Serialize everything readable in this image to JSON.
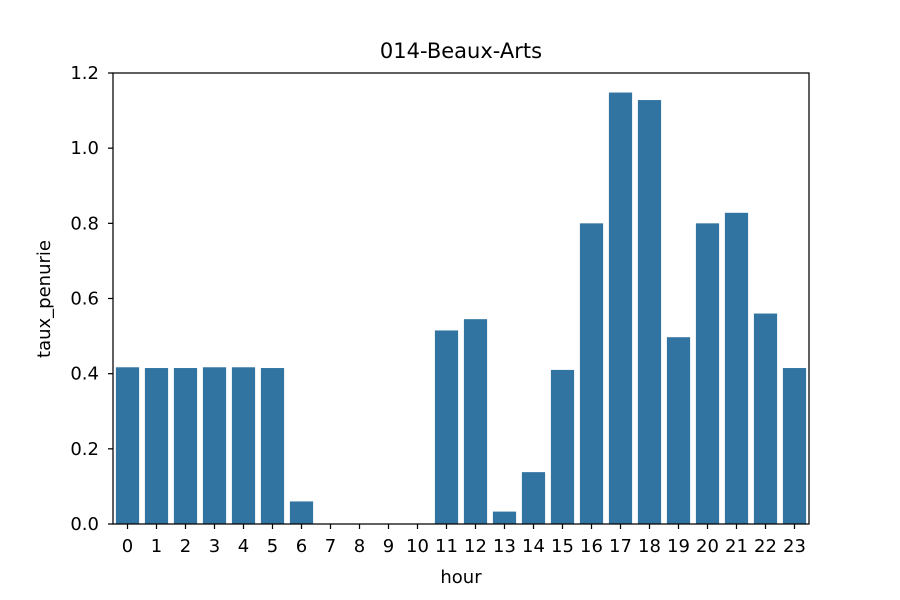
{
  "chart_data": {
    "type": "bar",
    "title": "014-Beaux-Arts",
    "xlabel": "hour",
    "ylabel": "taux_penurie",
    "categories": [
      "0",
      "1",
      "2",
      "3",
      "4",
      "5",
      "6",
      "7",
      "8",
      "9",
      "10",
      "11",
      "12",
      "13",
      "14",
      "15",
      "16",
      "17",
      "18",
      "19",
      "20",
      "21",
      "22",
      "23"
    ],
    "values": [
      0.417,
      0.415,
      0.415,
      0.417,
      0.417,
      0.415,
      0.06,
      0,
      0,
      0,
      0,
      0.515,
      0.545,
      0.033,
      0.138,
      0.41,
      0.8,
      1.148,
      1.128,
      0.497,
      0.8,
      0.828,
      0.56,
      0.415
    ],
    "ylim": [
      0,
      1.2
    ],
    "yticks": [
      0.0,
      0.2,
      0.4,
      0.6,
      0.8,
      1.0,
      1.2
    ],
    "ytick_labels": [
      "0.0",
      "0.2",
      "0.4",
      "0.6",
      "0.8",
      "1.0",
      "1.2"
    ],
    "bar_color": "#3274a1",
    "grid": false,
    "legend": "none"
  }
}
